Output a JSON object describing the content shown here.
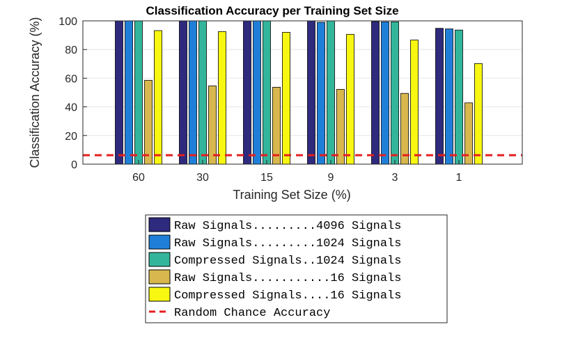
{
  "chart_data": {
    "type": "bar",
    "title": "Classification Accuracy per Training Set Size",
    "xlabel": "Training Set Size (%)",
    "ylabel": "Classification Accuracy (%)",
    "categories": [
      "60",
      "30",
      "15",
      "9",
      "3",
      "1"
    ],
    "ylim": [
      0,
      100
    ],
    "yticks": [
      "0",
      "20",
      "40",
      "60",
      "80",
      "100"
    ],
    "grid": true,
    "series": [
      {
        "name": "Raw Signals.........4096 Signals",
        "color": "#2e2a7d",
        "values": [
          100,
          100,
          100,
          100,
          99.5,
          94.8
        ]
      },
      {
        "name": "Raw Signals.........1024 Signals",
        "color": "#1f7fd8",
        "values": [
          100,
          100,
          100,
          99,
          99.3,
          94.4
        ]
      },
      {
        "name": "Compressed Signals..1024 Signals",
        "color": "#33b59b",
        "values": [
          100,
          100,
          100,
          100,
          99.3,
          93.6
        ]
      },
      {
        "name": "Raw Signals...........16 Signals",
        "color": "#d8b84e",
        "values": [
          58.5,
          54.6,
          53.7,
          52.2,
          49.4,
          42.8
        ]
      },
      {
        "name": "Compressed Signals....16 Signals",
        "color": "#f7f712",
        "values": [
          93.2,
          92.5,
          92.0,
          90.6,
          86.6,
          70.2
        ]
      }
    ],
    "reference_line": {
      "name": "Random Chance Accuracy",
      "value": 6.25,
      "color": "#e51e1e",
      "style": "dashed"
    },
    "legend_position": "below"
  }
}
